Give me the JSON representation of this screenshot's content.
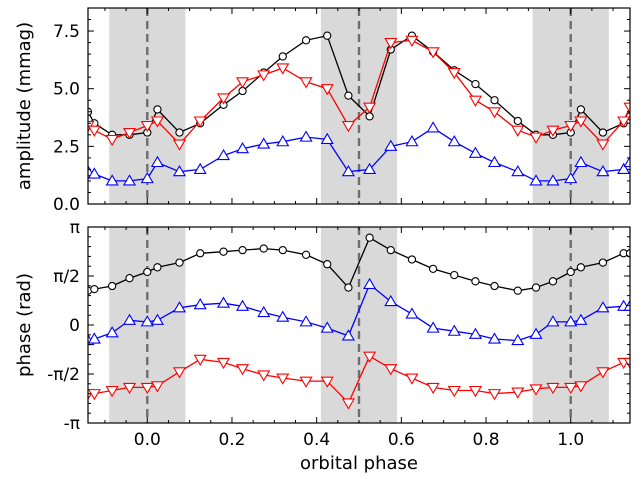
{
  "chart_data": [
    {
      "type": "line",
      "ylabel": "amplitude (mmag)",
      "xlabel": "",
      "xlim": [
        -0.14,
        1.14
      ],
      "ylim": [
        0,
        8.5
      ],
      "yticks": [
        0,
        2.5,
        5,
        7.5
      ],
      "ytick_labels": [
        "0.0",
        "2.5",
        "5.0",
        "7.5"
      ],
      "xtick_labels_shown": false,
      "vlines": [
        0.0,
        0.5,
        1.0
      ],
      "shaded_bands": [
        [
          -0.09,
          0.09
        ],
        [
          0.41,
          0.59
        ],
        [
          0.91,
          1.09
        ]
      ],
      "series": [
        {
          "color": "#000000",
          "marker": "circle",
          "x": [
            -0.14,
            -0.125,
            -0.083,
            -0.042,
            0.0,
            0.024,
            0.076,
            0.125,
            0.18,
            0.225,
            0.275,
            0.32,
            0.375,
            0.425,
            0.475,
            0.525,
            0.575,
            0.625,
            0.675,
            0.725,
            0.775,
            0.82,
            0.875,
            0.918,
            0.958,
            1.0,
            1.024,
            1.076,
            1.125,
            1.14
          ],
          "y": [
            4.0,
            3.5,
            3.0,
            3.0,
            3.1,
            4.1,
            3.1,
            3.5,
            4.3,
            4.9,
            5.7,
            6.4,
            7.1,
            7.3,
            4.7,
            3.8,
            6.7,
            7.3,
            6.6,
            5.8,
            5.2,
            4.5,
            3.6,
            3.0,
            3.0,
            3.1,
            4.1,
            3.1,
            3.5,
            3.8
          ]
        },
        {
          "color": "#ff0000",
          "marker": "triangle-down",
          "x": [
            -0.14,
            -0.125,
            -0.083,
            -0.042,
            0.0,
            0.024,
            0.076,
            0.125,
            0.18,
            0.225,
            0.275,
            0.32,
            0.375,
            0.425,
            0.475,
            0.525,
            0.575,
            0.625,
            0.675,
            0.725,
            0.775,
            0.82,
            0.875,
            0.918,
            0.958,
            1.0,
            1.024,
            1.076,
            1.125,
            1.14
          ],
          "y": [
            3.4,
            3.2,
            2.8,
            3.1,
            3.4,
            3.6,
            2.6,
            3.6,
            4.6,
            5.3,
            5.6,
            5.9,
            5.3,
            5.0,
            3.4,
            4.2,
            7.0,
            7.1,
            6.6,
            5.7,
            4.5,
            4.0,
            3.2,
            2.9,
            3.2,
            3.4,
            3.6,
            2.6,
            3.6,
            4.2
          ]
        },
        {
          "color": "#0000ff",
          "marker": "triangle-up",
          "x": [
            -0.14,
            -0.125,
            -0.083,
            -0.042,
            0.0,
            0.024,
            0.076,
            0.125,
            0.18,
            0.225,
            0.275,
            0.32,
            0.375,
            0.425,
            0.475,
            0.525,
            0.575,
            0.625,
            0.675,
            0.725,
            0.775,
            0.82,
            0.875,
            0.918,
            0.958,
            1.0,
            1.024,
            1.076,
            1.125,
            1.14
          ],
          "y": [
            1.4,
            1.3,
            1.0,
            1.0,
            1.1,
            1.8,
            1.4,
            1.5,
            2.1,
            2.4,
            2.6,
            2.7,
            2.9,
            2.8,
            1.4,
            1.5,
            2.5,
            2.7,
            3.3,
            2.7,
            2.2,
            1.8,
            1.4,
            1.0,
            1.0,
            1.1,
            1.8,
            1.4,
            1.5,
            1.8
          ]
        }
      ]
    },
    {
      "type": "line",
      "ylabel": "phase (rad)",
      "xlabel": "orbital phase",
      "xlim": [
        -0.14,
        1.14
      ],
      "ylim": [
        -3.1416,
        3.1416
      ],
      "yticks": [
        -3.1416,
        -1.5708,
        0,
        1.5708,
        3.1416
      ],
      "ytick_labels": [
        "-π",
        "-π/2",
        "0",
        "π/2",
        "π"
      ],
      "xticks": [
        0.0,
        0.2,
        0.4,
        0.6,
        0.8,
        1.0
      ],
      "xtick_labels": [
        "0.0",
        "0.2",
        "0.4",
        "0.6",
        "0.8",
        "1.0"
      ],
      "vlines": [
        0.0,
        0.5,
        1.0
      ],
      "shaded_bands": [
        [
          -0.09,
          0.09
        ],
        [
          0.41,
          0.59
        ],
        [
          0.91,
          1.09
        ]
      ],
      "series": [
        {
          "color": "#000000",
          "marker": "circle",
          "x": [
            -0.14,
            -0.125,
            -0.083,
            -0.042,
            0.0,
            0.024,
            0.076,
            0.125,
            0.18,
            0.225,
            0.275,
            0.32,
            0.375,
            0.425,
            0.475,
            0.525,
            0.575,
            0.625,
            0.675,
            0.725,
            0.775,
            0.82,
            0.875,
            0.918,
            0.958,
            1.0,
            1.024,
            1.076,
            1.125,
            1.14
          ],
          "y": [
            1.1,
            1.15,
            1.25,
            1.5,
            1.7,
            1.85,
            2.0,
            2.3,
            2.35,
            2.4,
            2.45,
            2.4,
            2.25,
            1.95,
            1.2,
            2.8,
            2.4,
            2.1,
            1.8,
            1.6,
            1.4,
            1.25,
            1.1,
            1.2,
            1.4,
            1.7,
            1.85,
            2.0,
            2.3,
            2.3
          ]
        },
        {
          "color": "#0000ff",
          "marker": "triangle-up",
          "x": [
            -0.14,
            -0.125,
            -0.083,
            -0.042,
            0.0,
            0.024,
            0.076,
            0.125,
            0.18,
            0.225,
            0.275,
            0.32,
            0.375,
            0.425,
            0.475,
            0.525,
            0.575,
            0.625,
            0.675,
            0.725,
            0.775,
            0.82,
            0.875,
            0.918,
            0.958,
            1.0,
            1.024,
            1.076,
            1.125,
            1.14
          ],
          "y": [
            -0.5,
            -0.45,
            -0.25,
            0.15,
            0.1,
            0.15,
            0.55,
            0.65,
            0.7,
            0.6,
            0.4,
            0.25,
            0.1,
            -0.1,
            -0.35,
            1.3,
            0.75,
            0.35,
            -0.1,
            -0.2,
            -0.3,
            -0.45,
            -0.5,
            -0.3,
            0.1,
            0.1,
            0.15,
            0.55,
            0.6,
            0.6
          ]
        },
        {
          "color": "#ff0000",
          "marker": "triangle-down",
          "x": [
            -0.14,
            -0.125,
            -0.083,
            -0.042,
            0.0,
            0.024,
            0.076,
            0.125,
            0.18,
            0.225,
            0.275,
            0.32,
            0.375,
            0.425,
            0.475,
            0.525,
            0.575,
            0.625,
            0.675,
            0.725,
            0.775,
            0.82,
            0.875,
            0.918,
            0.958,
            1.0,
            1.024,
            1.076,
            1.125,
            1.14
          ],
          "y": [
            -2.2,
            -2.2,
            -2.1,
            -2.0,
            -2.0,
            -1.95,
            -1.5,
            -1.1,
            -1.2,
            -1.4,
            -1.6,
            -1.7,
            -1.8,
            -1.8,
            -2.5,
            -1.0,
            -1.4,
            -1.7,
            -2.0,
            -2.1,
            -2.1,
            -2.2,
            -2.15,
            -2.05,
            -2.0,
            -2.0,
            -1.95,
            -1.5,
            -1.2,
            -1.2
          ]
        }
      ]
    }
  ]
}
